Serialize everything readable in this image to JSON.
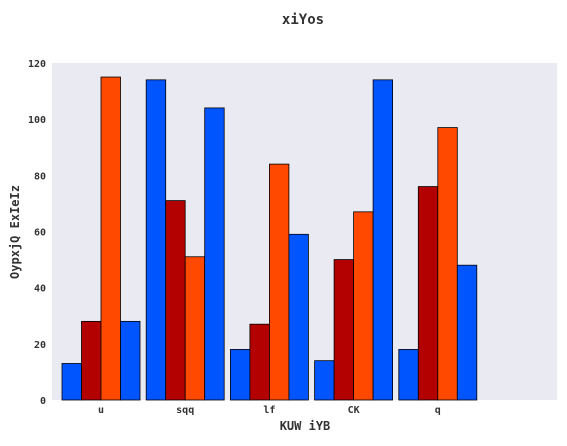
{
  "chart_data": {
    "type": "bar",
    "title": "xiYos",
    "xlabel": "KUW iYB",
    "ylabel": "OypxjQ ExIeIz",
    "categories": [
      "u",
      "sqq",
      "lf",
      "CK",
      "q"
    ],
    "series": [
      {
        "values": [
          13,
          114,
          18,
          14,
          18
        ],
        "color": "#0055ff"
      },
      {
        "values": [
          28,
          71,
          27,
          50,
          76
        ],
        "color": "#b30000"
      },
      {
        "values": [
          115,
          51,
          84,
          67,
          97
        ],
        "color": "#ff4800"
      },
      {
        "values": [
          28,
          104,
          59,
          114,
          48
        ],
        "color": "#0055ff"
      }
    ],
    "ylim": [
      0,
      120
    ],
    "yticks": [
      0,
      20,
      40,
      60,
      80,
      100,
      120
    ],
    "grid": false,
    "background": "#eaeaf2"
  }
}
